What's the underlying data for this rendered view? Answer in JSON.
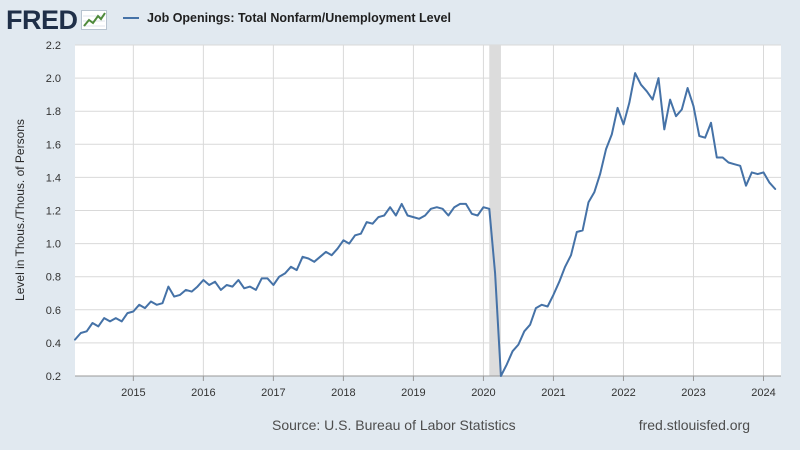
{
  "header": {
    "logo_text": "FRED",
    "logo_icon": "line-chart-icon",
    "legend_label": "Job Openings: Total Nonfarm/Unemployment Level"
  },
  "colors": {
    "series": "#4572a7",
    "background": "#e1e9f0",
    "plot": "#ffffff",
    "grid": "#d9d9d9",
    "recession": "#dcdcdc"
  },
  "chart_data": {
    "type": "line",
    "title": "",
    "xlabel": "",
    "ylabel": "Level in Thous./Thous. of Persons",
    "ylim": [
      0.2,
      2.2
    ],
    "y_ticks": [
      "0.2",
      "0.4",
      "0.6",
      "0.8",
      "1.0",
      "1.2",
      "1.4",
      "1.6",
      "1.8",
      "2.0",
      "2.2"
    ],
    "x_ticks": [
      "2015",
      "2016",
      "2017",
      "2018",
      "2019",
      "2020",
      "2021",
      "2022",
      "2023",
      "2024"
    ],
    "x_range": [
      "2014-03",
      "2024-04"
    ],
    "grid": true,
    "recession_shading": [
      "2020-02",
      "2020-04"
    ],
    "series": [
      {
        "name": "Job Openings: Total Nonfarm/Unemployment Level",
        "x_start": "2014-03",
        "frequency": "monthly",
        "values": [
          0.42,
          0.46,
          0.47,
          0.52,
          0.5,
          0.55,
          0.53,
          0.55,
          0.53,
          0.58,
          0.59,
          0.63,
          0.61,
          0.65,
          0.63,
          0.64,
          0.74,
          0.68,
          0.69,
          0.72,
          0.71,
          0.74,
          0.78,
          0.75,
          0.77,
          0.72,
          0.75,
          0.74,
          0.78,
          0.73,
          0.74,
          0.72,
          0.79,
          0.79,
          0.75,
          0.8,
          0.82,
          0.86,
          0.84,
          0.92,
          0.91,
          0.89,
          0.92,
          0.95,
          0.93,
          0.97,
          1.02,
          1.0,
          1.05,
          1.06,
          1.13,
          1.12,
          1.16,
          1.17,
          1.22,
          1.17,
          1.24,
          1.17,
          1.16,
          1.15,
          1.17,
          1.21,
          1.22,
          1.21,
          1.17,
          1.22,
          1.24,
          1.24,
          1.18,
          1.17,
          1.22,
          1.21,
          0.82,
          0.2,
          0.27,
          0.35,
          0.39,
          0.47,
          0.51,
          0.61,
          0.63,
          0.62,
          0.69,
          0.77,
          0.86,
          0.93,
          1.07,
          1.08,
          1.25,
          1.31,
          1.42,
          1.57,
          1.66,
          1.82,
          1.72,
          1.85,
          2.03,
          1.96,
          1.92,
          1.87,
          2.0,
          1.69,
          1.87,
          1.77,
          1.81,
          1.94,
          1.83,
          1.65,
          1.64,
          1.73,
          1.52,
          1.52,
          1.49,
          1.48,
          1.47,
          1.35,
          1.43,
          1.42,
          1.43,
          1.37,
          1.33
        ]
      }
    ]
  },
  "footer": {
    "source": "Source: U.S. Bureau of Labor Statistics",
    "url": "fred.stlouisfed.org"
  }
}
